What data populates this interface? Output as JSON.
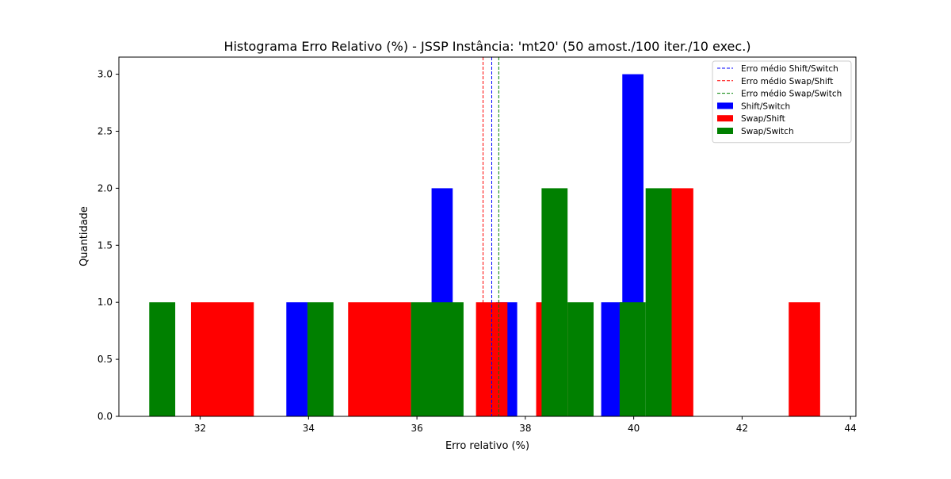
{
  "chart_data": {
    "type": "bar",
    "title": "Histograma Erro Relativo (%) - JSSP Instância: 'mt20' (50 amost./100 iter./10 exec.)",
    "xlabel": "Erro relativo (%)",
    "ylabel": "Quantidade",
    "xlim": [
      30.5,
      44.1
    ],
    "ylim": [
      0,
      3.15
    ],
    "xticks": [
      32,
      34,
      36,
      38,
      40,
      42,
      44
    ],
    "yticks": [
      0.0,
      0.5,
      1.0,
      1.5,
      2.0,
      2.5,
      3.0
    ],
    "xtick_labels": [
      "32",
      "34",
      "36",
      "38",
      "40",
      "42",
      "44"
    ],
    "ytick_labels": [
      "0.0",
      "0.5",
      "1.0",
      "1.5",
      "2.0",
      "2.5",
      "3.0"
    ],
    "grid": false,
    "legend_position": "top-right",
    "series": [
      {
        "name": "Shift/Switch",
        "color": "#0000ff",
        "bins": [
          {
            "x0": 33.59,
            "x1": 33.98,
            "count": 1
          },
          {
            "x0": 36.27,
            "x1": 36.66,
            "count": 2
          },
          {
            "x0": 37.46,
            "x1": 37.85,
            "count": 1
          },
          {
            "x0": 39.4,
            "x1": 39.79,
            "count": 1
          },
          {
            "x0": 39.79,
            "x1": 40.18,
            "count": 3
          }
        ]
      },
      {
        "name": "Swap/Shift",
        "color": "#ff0000",
        "bins": [
          {
            "x0": 31.83,
            "x1": 32.99,
            "count": 1
          },
          {
            "x0": 34.73,
            "x1": 35.89,
            "count": 1
          },
          {
            "x0": 37.09,
            "x1": 37.67,
            "count": 1
          },
          {
            "x0": 38.2,
            "x1": 38.78,
            "count": 1
          },
          {
            "x0": 40.68,
            "x1": 41.1,
            "count": 2
          },
          {
            "x0": 42.86,
            "x1": 43.44,
            "count": 1
          }
        ]
      },
      {
        "name": "Swap/Switch",
        "color": "#008000",
        "bins": [
          {
            "x0": 31.06,
            "x1": 31.54,
            "count": 1
          },
          {
            "x0": 33.98,
            "x1": 34.46,
            "count": 1
          },
          {
            "x0": 35.89,
            "x1": 36.86,
            "count": 1
          },
          {
            "x0": 38.3,
            "x1": 38.78,
            "count": 2
          },
          {
            "x0": 38.78,
            "x1": 39.26,
            "count": 1
          },
          {
            "x0": 39.74,
            "x1": 40.22,
            "count": 1
          },
          {
            "x0": 40.22,
            "x1": 40.7,
            "count": 2
          }
        ]
      }
    ],
    "mean_lines": [
      {
        "name": "Erro médio Shift/Switch",
        "x": 37.38,
        "color": "#0000ff"
      },
      {
        "name": "Erro médio Swap/Shift",
        "x": 37.22,
        "color": "#ff0000"
      },
      {
        "name": "Erro médio Swap/Switch",
        "x": 37.51,
        "color": "#008000"
      }
    ]
  }
}
